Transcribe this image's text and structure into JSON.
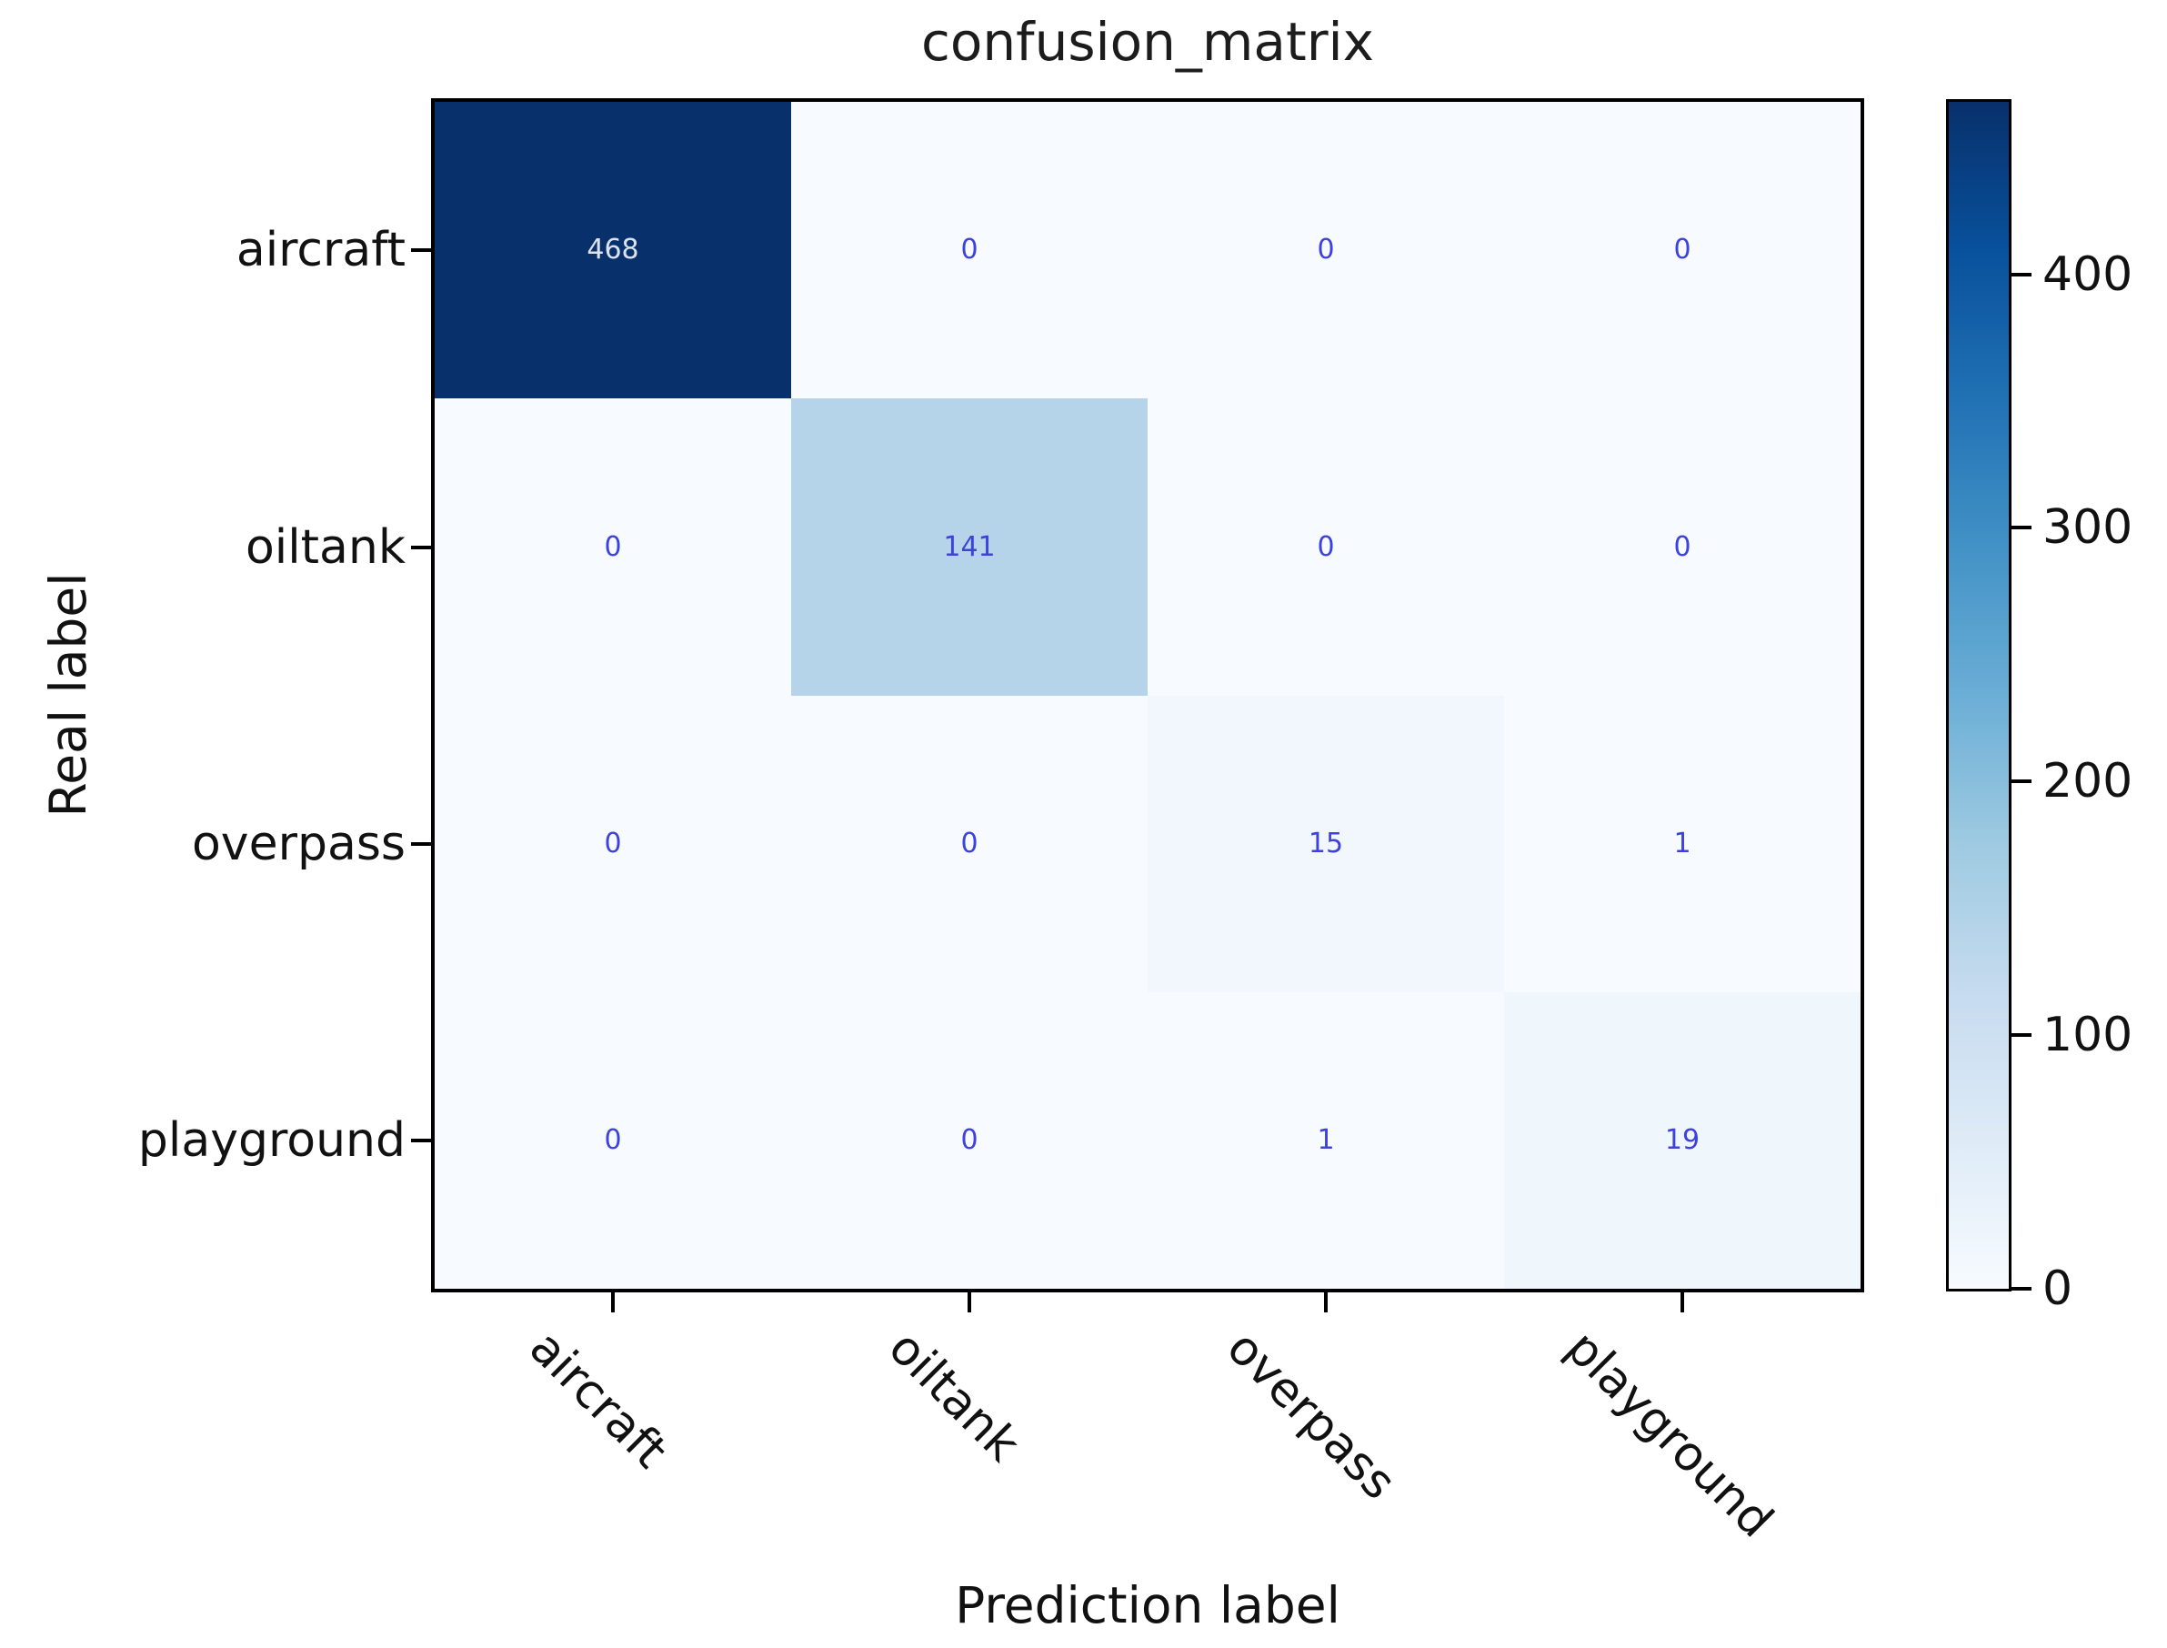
{
  "title": "confusion_matrix",
  "chart_data": {
    "type": "heatmap",
    "title": "confusion_matrix",
    "xlabel": "Prediction label",
    "ylabel": "Real label",
    "row_labels": [
      "aircraft",
      "oiltank",
      "overpass",
      "playground"
    ],
    "col_labels": [
      "aircraft",
      "oiltank",
      "overpass",
      "playground"
    ],
    "matrix": [
      [
        468,
        0,
        0,
        0
      ],
      [
        0,
        141,
        0,
        0
      ],
      [
        0,
        0,
        15,
        1
      ],
      [
        0,
        0,
        1,
        19
      ]
    ],
    "vmin": 0,
    "vmax": 468,
    "colormap": "Blues",
    "colorbar_ticks": [
      0,
      100,
      200,
      300,
      400
    ],
    "x_tick_rotation_deg": 45,
    "grid": false,
    "legend_position": "right-colorbar"
  },
  "colors": {
    "background": "#ffffff",
    "axis": "#000000",
    "annotation_blue": "#3d42dc",
    "annotation_light": "#dde3ee",
    "blues_stops": [
      "#f7fbff",
      "#deebf7",
      "#c6dbef",
      "#9ecae1",
      "#6baed6",
      "#4292c6",
      "#2171b5",
      "#08519c",
      "#08306b"
    ]
  }
}
